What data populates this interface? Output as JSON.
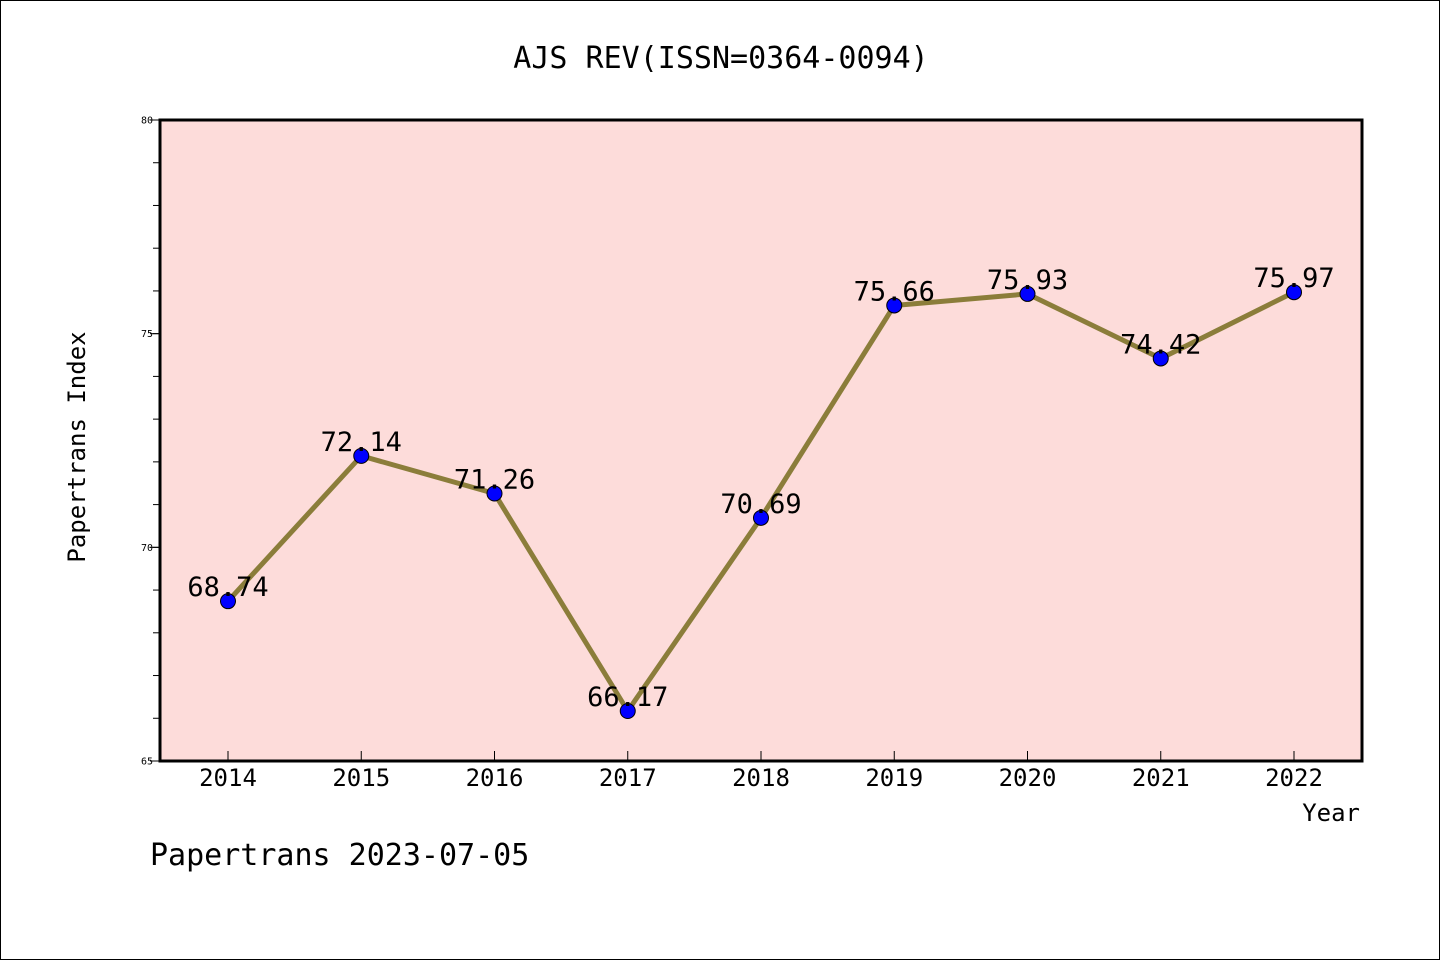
{
  "colors": {
    "plot_background": "#FDDCDA",
    "line": "#8B7D3A",
    "marker": "#0000FF",
    "axis": "#000000"
  },
  "chart_data": {
    "type": "line",
    "title": "AJS REV(ISSN=0364-0094)",
    "xlabel": "Year",
    "ylabel": "Papertrans Index",
    "categories": [
      "2014",
      "2015",
      "2016",
      "2017",
      "2018",
      "2019",
      "2020",
      "2021",
      "2022"
    ],
    "series": [
      {
        "values": [
          68.74,
          72.14,
          71.26,
          66.17,
          70.69,
          75.66,
          75.93,
          74.42,
          75.97
        ],
        "labels": [
          "68.74",
          "72.14",
          "71.26",
          "66.17",
          "70.69",
          "75.66",
          "75.93",
          "74.42",
          "75.97"
        ]
      }
    ],
    "ylim": [
      65,
      80
    ],
    "y_ticks": [
      "65",
      "70",
      "75",
      "80"
    ],
    "y_minor_step": 1,
    "grid": false,
    "legend": "none"
  },
  "footer": {
    "text": "Papertrans 2023-07-05"
  }
}
